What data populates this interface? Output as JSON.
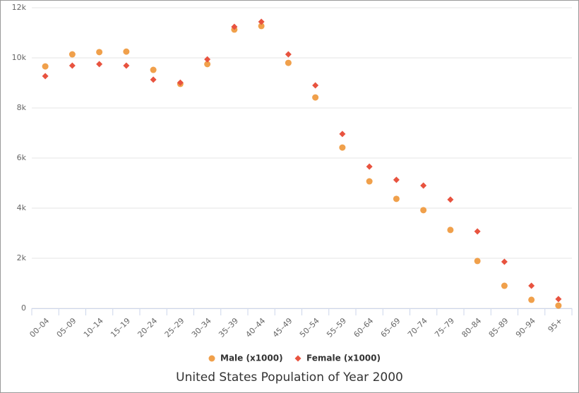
{
  "chart_data": {
    "type": "scatter",
    "title": "United States Population of Year 2000",
    "categories": [
      "00–04",
      "05–09",
      "10–14",
      "15–19",
      "20–24",
      "25–29",
      "30–34",
      "35–39",
      "40–44",
      "45–49",
      "50–54",
      "55–59",
      "60–64",
      "65–69",
      "70–74",
      "75–79",
      "80–84",
      "85–89",
      "90–94",
      "95+"
    ],
    "series": [
      {
        "name": "Male (x1000)",
        "color": "#f0a04b",
        "marker": "circle",
        "values": [
          9660,
          10140,
          10230,
          10250,
          9520,
          8960,
          9750,
          11130,
          11270,
          9800,
          8420,
          6420,
          5070,
          4370,
          3920,
          3130,
          1890,
          900,
          340,
          110
        ]
      },
      {
        "name": "Female (x1000)",
        "color": "#e8533f",
        "marker": "diamond",
        "values": [
          9270,
          9690,
          9750,
          9690,
          9130,
          9010,
          9940,
          11240,
          11440,
          10140,
          8900,
          6960,
          5660,
          5130,
          4900,
          4340,
          3070,
          1860,
          900,
          370
        ]
      }
    ],
    "ylim": [
      0,
      12000
    ],
    "yticks": [
      0,
      {
        "value": 2000,
        "label": "2k"
      },
      {
        "value": 4000,
        "label": "4k"
      },
      {
        "value": 6000,
        "label": "6k"
      },
      {
        "value": 8000,
        "label": "8k"
      },
      {
        "value": 10000,
        "label": "10k"
      },
      {
        "value": 12000,
        "label": "12k"
      }
    ],
    "grid": true,
    "legend": "bottom"
  }
}
